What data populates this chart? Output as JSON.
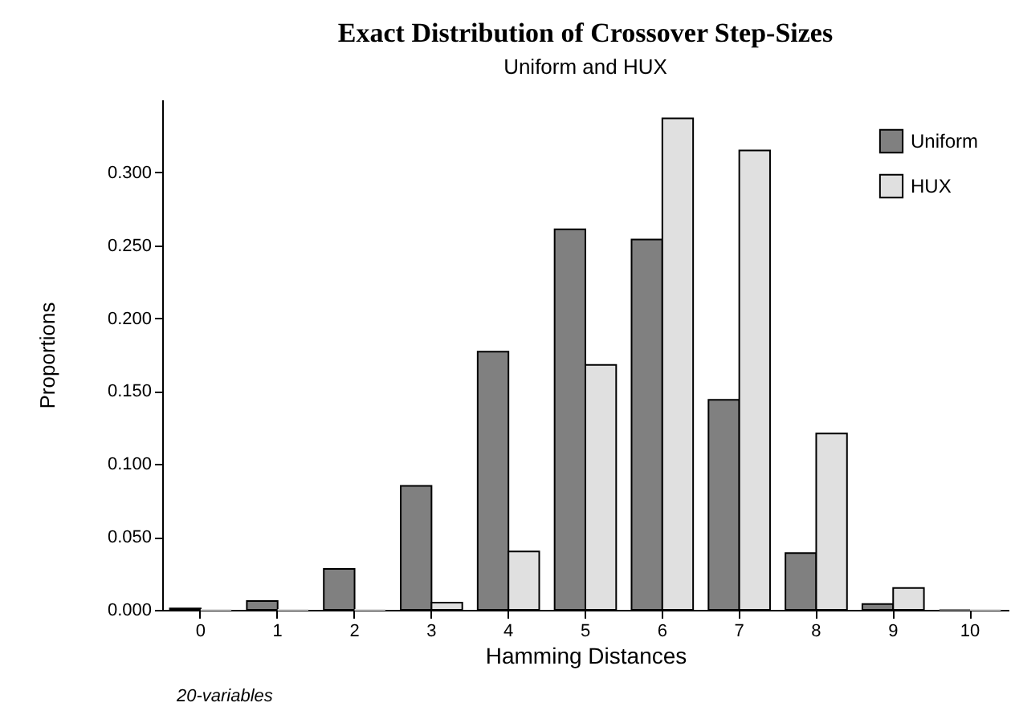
{
  "chart_data": {
    "type": "bar",
    "title": "Exact Distribution of Crossover Step-Sizes",
    "subtitle": "Uniform and HUX",
    "xlabel": "Hamming Distances",
    "ylabel": "Proportions",
    "categories": [
      "0",
      "1",
      "2",
      "3",
      "4",
      "5",
      "6",
      "7",
      "8",
      "9",
      "10"
    ],
    "series": [
      {
        "name": "Uniform",
        "color": "#808080",
        "values": [
          0.001,
          0.006,
          0.028,
          0.085,
          0.177,
          0.261,
          0.254,
          0.144,
          0.039,
          0.004,
          0.0
        ]
      },
      {
        "name": "HUX",
        "color": "#e0e0e0",
        "values": [
          0.0,
          0.0,
          0.0,
          0.005,
          0.04,
          0.168,
          0.337,
          0.315,
          0.121,
          0.015,
          0.0
        ]
      }
    ],
    "ylim": [
      0,
      0.35
    ],
    "yticks": [
      {
        "value": 0,
        "label": "0.000"
      },
      {
        "value": 0.05,
        "label": "0.050"
      },
      {
        "value": 0.1,
        "label": "0.100"
      },
      {
        "value": 0.15,
        "label": "0.150"
      },
      {
        "value": 0.2,
        "label": "0.200"
      },
      {
        "value": 0.25,
        "label": "0.250"
      },
      {
        "value": 0.3,
        "label": "0.300"
      }
    ],
    "grid": false,
    "legend": "top right",
    "annotations": [
      "20-variables"
    ]
  }
}
